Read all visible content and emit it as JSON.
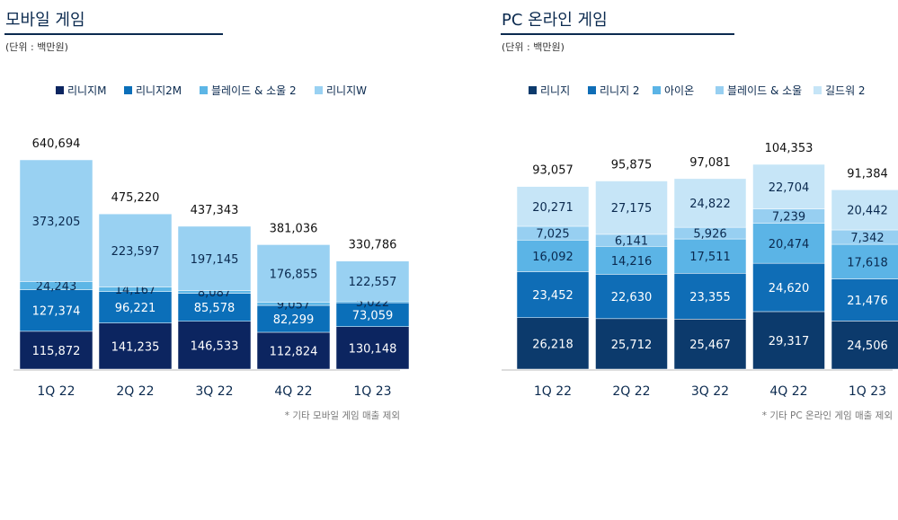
{
  "chart_data": [
    {
      "type": "bar",
      "stacked": true,
      "title": "모바일 게임",
      "unit": "(단위 : 백만원)",
      "footnote": "* 기타 모바일 게임 매출 제외",
      "categories": [
        "1Q 22",
        "2Q 22",
        "3Q 22",
        "4Q 22",
        "1Q 23"
      ],
      "totals": [
        "640,694",
        "475,220",
        "437,343",
        "381,036",
        "330,786"
      ],
      "legend_position": "top",
      "series": [
        {
          "name": "리니지M",
          "color": "#0c2560",
          "values": [
            115872,
            141235,
            146533,
            112824,
            130148
          ]
        },
        {
          "name": "리니지2M",
          "color": "#0b6fb9",
          "values": [
            127374,
            96221,
            85578,
            82299,
            73059
          ]
        },
        {
          "name": "블레이드 & 소울 2",
          "color": "#5db6e6",
          "values": [
            24243,
            14167,
            8087,
            9057,
            5022
          ]
        },
        {
          "name": "리니지W",
          "color": "#99d1f2",
          "values": [
            373205,
            223597,
            197145,
            176855,
            122557
          ]
        }
      ]
    },
    {
      "type": "bar",
      "stacked": true,
      "title": "PC 온라인 게임",
      "unit": "(단위 : 백만원)",
      "footnote": "* 기타 PC 온라인 게임 매출 제외",
      "categories": [
        "1Q 22",
        "2Q 22",
        "3Q 22",
        "4Q 22",
        "1Q 23"
      ],
      "totals": [
        "93,057",
        "95,875",
        "97,081",
        "104,353",
        "91,384"
      ],
      "legend_position": "top",
      "series": [
        {
          "name": "리니지",
          "color": "#0c3a6c",
          "values": [
            26218,
            25712,
            25467,
            29317,
            24506
          ]
        },
        {
          "name": "리니지 2",
          "color": "#0f6db6",
          "values": [
            23452,
            22630,
            23355,
            24620,
            21476
          ]
        },
        {
          "name": "아이온",
          "color": "#5bb4e6",
          "values": [
            16092,
            14216,
            17511,
            20474,
            17618
          ]
        },
        {
          "name": "블레이드 & 소울",
          "color": "#97cff1",
          "values": [
            7025,
            6141,
            5926,
            7239,
            7342
          ]
        },
        {
          "name": "길드워 2",
          "color": "#c6e5f7",
          "values": [
            20271,
            27175,
            24822,
            22704,
            20442
          ]
        }
      ]
    }
  ]
}
